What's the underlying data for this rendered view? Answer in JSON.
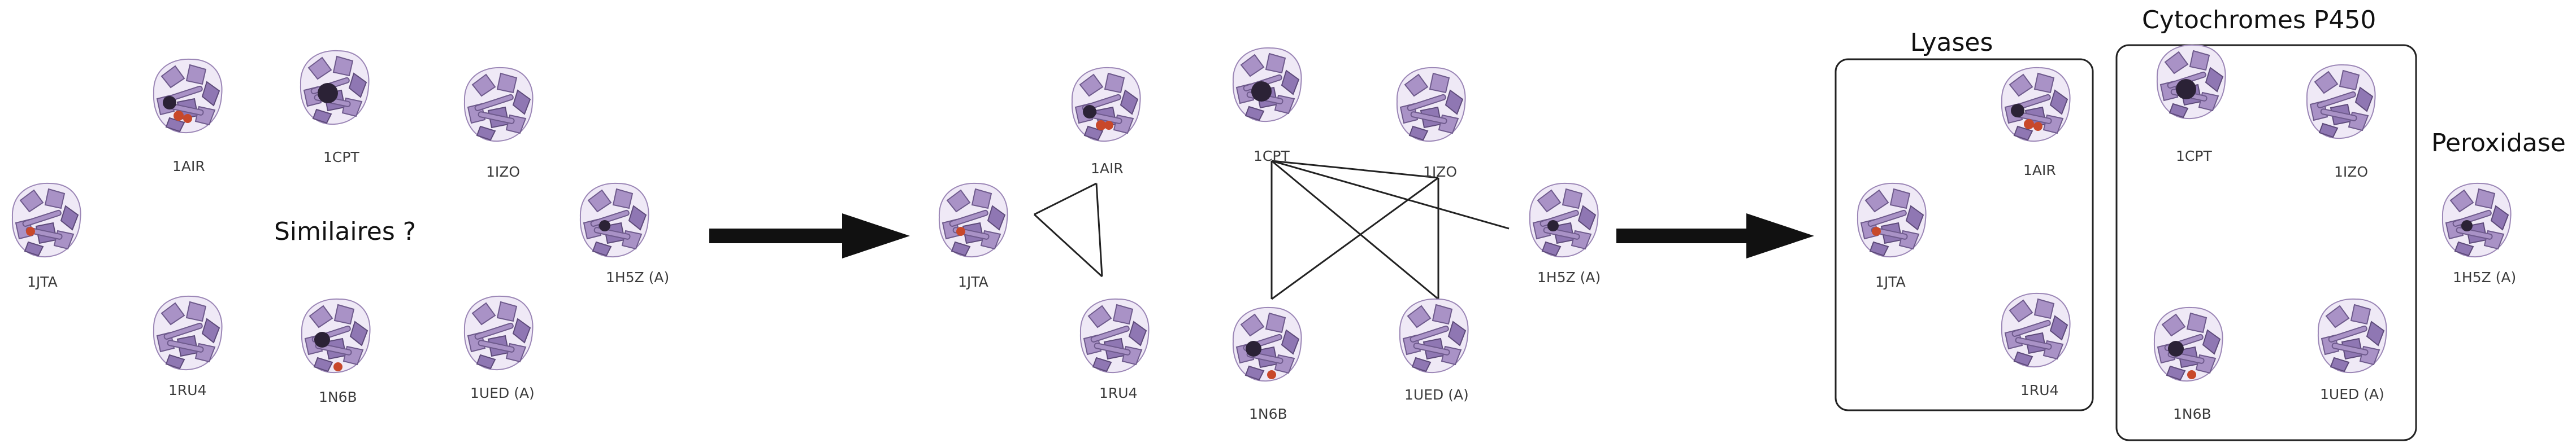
{
  "colors": {
    "protein": "#a992c6",
    "protein_dark": "#2b2236",
    "ligand": "#c8482a",
    "arrow": "#111111",
    "background": "#ffffff"
  },
  "panel1": {
    "question": "Similaires ?",
    "proteins": [
      "1AIR",
      "1CPT",
      "1IZO",
      "1JTA",
      "1H5Z (A)",
      "1RU4",
      "1N6B",
      "1UED (A)"
    ]
  },
  "panel2": {
    "proteins": [
      "1AIR",
      "1CPT",
      "1IZO",
      "1JTA",
      "1H5Z (A)",
      "1RU4",
      "1N6B",
      "1UED (A)"
    ],
    "connections": [
      [
        "1JTA",
        "1AIR"
      ],
      [
        "1JTA",
        "1RU4"
      ],
      [
        "1AIR",
        "1RU4"
      ],
      [
        "1CPT",
        "1IZO"
      ],
      [
        "1CPT",
        "1N6B"
      ],
      [
        "1CPT",
        "1UED (A)"
      ],
      [
        "1CPT",
        "1H5Z (A)"
      ],
      [
        "1IZO",
        "1N6B"
      ],
      [
        "1IZO",
        "1UED (A)"
      ]
    ]
  },
  "panel3": {
    "groups": [
      {
        "title": "Lyases",
        "proteins": [
          "1AIR",
          "1JTA",
          "1RU4"
        ]
      },
      {
        "title": "Cytochromes P450",
        "proteins": [
          "1CPT",
          "1IZO",
          "1N6B",
          "1UED (A)"
        ]
      },
      {
        "title": "Peroxidase",
        "proteins": [
          "1H5Z (A)"
        ]
      }
    ]
  }
}
